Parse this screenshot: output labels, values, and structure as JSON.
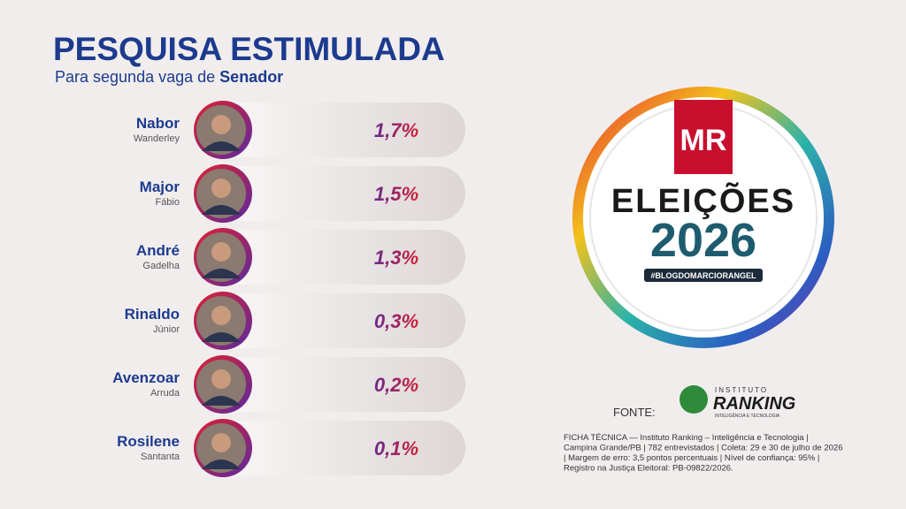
{
  "header": {
    "title": "PESQUISA ESTIMULADA",
    "subtitle": {
      "text": "Para segunda vaga de",
      "emphasis": "Senador"
    }
  },
  "candidates": [
    {
      "first": "Nabor",
      "last": "Wanderley",
      "value": "1,7%"
    },
    {
      "first": "Major",
      "last": "Fábio",
      "value": "1,5%"
    },
    {
      "first": "André",
      "last": "Gadelha",
      "value": "1,3%"
    },
    {
      "first": "Rinaldo",
      "last": "Júnior",
      "value": "0,3%"
    },
    {
      "first": "Avenzoar",
      "last": "Arruda",
      "value": "0,2%"
    },
    {
      "first": "Rosilene",
      "last": "Santanta",
      "value": "0,1%"
    }
  ],
  "logo": {
    "mark": "MR",
    "title": "ELEIÇÕES",
    "year": "2026",
    "tag": "#BLOGDOMARCIORANGEL"
  },
  "source": {
    "label": "FONTE:",
    "org_top": "INSTITUTO",
    "org_name": "RANKING",
    "org_sub": "INTELIGÊNCIA E TECNOLOGIA",
    "notes": [
      "FICHA TÉCNICA — Instituto Ranking – Inteligência e Tecnologia |",
      "Campina Grande/PB | 782 entrevistados | Coleta: 29 e 30 de julho de 2026",
      "| Margem de erro: 3,5 pontos percentuais | Nível de confiança: 95% |",
      "Registro na Justiça Eleitoral: PB-09822/2026."
    ]
  }
}
